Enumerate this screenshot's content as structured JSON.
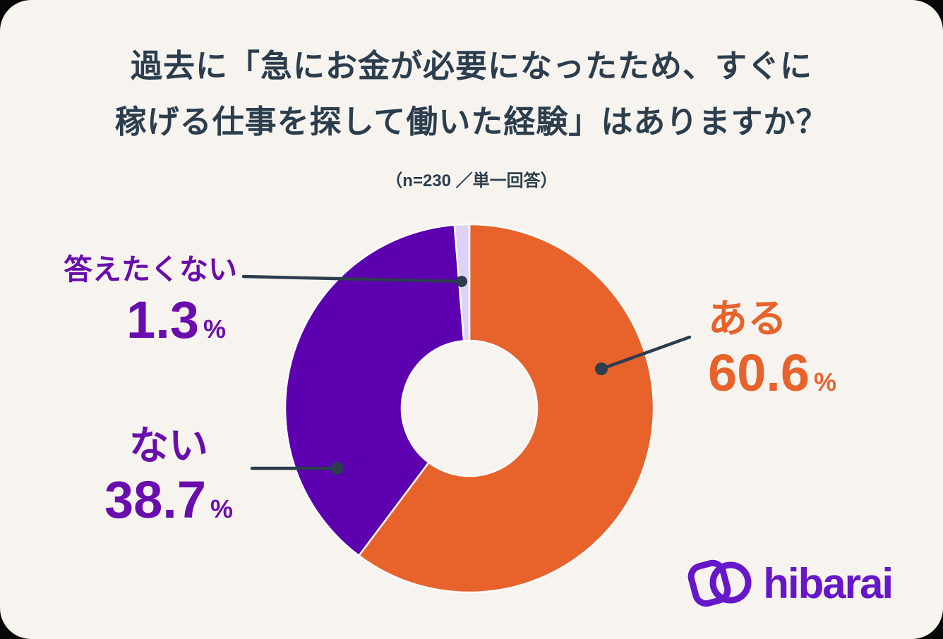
{
  "header": {
    "title_line1": "過去に「急にお金が必要になったため、すぐに",
    "title_line2": "稼げる仕事を探して働いた経験」はありますか？",
    "subtitle": "（n=230 ／単一回答）"
  },
  "chart_data": {
    "type": "pie",
    "variant": "donut",
    "title": "過去に「急にお金が必要になったため、すぐに稼げる仕事を探して働いた経験」はありますか？",
    "subtitle": "（n=230 ／単一回答）",
    "n": 230,
    "answer_mode": "単一回答",
    "categories": [
      "ある",
      "ない",
      "答えたくない"
    ],
    "values": [
      60.6,
      38.7,
      1.3
    ],
    "unit": "%",
    "colors": [
      "#E8622C",
      "#5C00B0",
      "#DCD2F4"
    ],
    "segment_gap_color": "#FFFFFF",
    "start_angle": "top",
    "direction": "clockwise",
    "donut_hole_ratio": 0.37,
    "legend_position": "none",
    "labels": [
      {
        "name": "ある",
        "value": "60.6",
        "unit": "%",
        "text_color": "#E8622C"
      },
      {
        "name": "ない",
        "value": "38.7",
        "unit": "%",
        "text_color": "#6A0DAD"
      },
      {
        "name": "答えたくない",
        "value": "1.3",
        "unit": "%",
        "text_color": "#6A0DAD"
      }
    ]
  },
  "style_colors": {
    "card_background": "#F7F4EF",
    "title_text": "#2C3D4D",
    "leader_line": "#2C3D4D",
    "logo_purple": "#6517C9"
  },
  "logo": {
    "text": "hibarai",
    "icon": "overlapping-card-and-coin-icon"
  }
}
